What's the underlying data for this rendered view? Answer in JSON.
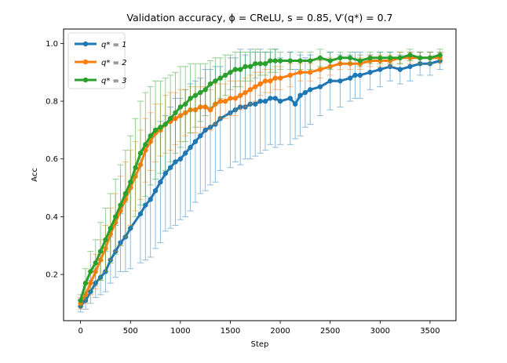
{
  "chart_data": {
    "type": "line",
    "title": "Validation accuracy, ϕ = CReLU, s = 0.85, V′(q*) = 0.7",
    "xlabel": "Step",
    "ylabel": "Acc",
    "xlim": [
      -170,
      3760
    ],
    "ylim": [
      0.04,
      1.05
    ],
    "xticks": [
      0,
      500,
      1000,
      1500,
      2000,
      2500,
      3000,
      3500
    ],
    "yticks": [
      0.2,
      0.4,
      0.6,
      0.8,
      1.0
    ],
    "xtick_labels": [
      "0",
      "500",
      "1000",
      "1500",
      "2000",
      "2500",
      "3000",
      "3500"
    ],
    "ytick_labels": [
      "0.2",
      "0.4",
      "0.6",
      "0.8",
      "1.0"
    ],
    "legend_position": "top-left",
    "series": [
      {
        "name": "q* = 1",
        "legend_label": "q* = 1",
        "color": "#1f77b4",
        "x": [
          0,
          50,
          100,
          150,
          200,
          250,
          300,
          350,
          400,
          450,
          500,
          600,
          650,
          700,
          750,
          800,
          850,
          900,
          950,
          1000,
          1050,
          1100,
          1150,
          1200,
          1250,
          1300,
          1350,
          1400,
          1500,
          1550,
          1600,
          1650,
          1700,
          1750,
          1800,
          1850,
          1900,
          1950,
          2000,
          2100,
          2150,
          2200,
          2250,
          2300,
          2400,
          2500,
          2600,
          2700,
          2750,
          2800,
          2900,
          3000,
          3100,
          3200,
          3300,
          3400,
          3500,
          3600
        ],
        "y": [
          0.09,
          0.11,
          0.14,
          0.17,
          0.19,
          0.21,
          0.25,
          0.28,
          0.31,
          0.33,
          0.36,
          0.41,
          0.44,
          0.46,
          0.49,
          0.52,
          0.55,
          0.57,
          0.59,
          0.6,
          0.62,
          0.64,
          0.66,
          0.68,
          0.7,
          0.71,
          0.72,
          0.74,
          0.76,
          0.77,
          0.78,
          0.78,
          0.79,
          0.79,
          0.8,
          0.8,
          0.81,
          0.81,
          0.8,
          0.81,
          0.79,
          0.82,
          0.83,
          0.84,
          0.85,
          0.87,
          0.87,
          0.88,
          0.89,
          0.89,
          0.9,
          0.91,
          0.92,
          0.91,
          0.92,
          0.93,
          0.93,
          0.94
        ],
        "err": [
          0.02,
          0.03,
          0.04,
          0.05,
          0.06,
          0.07,
          0.08,
          0.09,
          0.1,
          0.12,
          0.14,
          0.17,
          0.19,
          0.2,
          0.2,
          0.21,
          0.2,
          0.21,
          0.22,
          0.21,
          0.22,
          0.22,
          0.21,
          0.2,
          0.21,
          0.2,
          0.2,
          0.18,
          0.19,
          0.18,
          0.2,
          0.18,
          0.19,
          0.18,
          0.18,
          0.17,
          0.16,
          0.17,
          0.15,
          0.16,
          0.12,
          0.14,
          0.12,
          0.12,
          0.1,
          0.1,
          0.09,
          0.08,
          0.08,
          0.08,
          0.06,
          0.06,
          0.05,
          0.05,
          0.05,
          0.04,
          0.04,
          0.03
        ]
      },
      {
        "name": "q* = 2",
        "legend_label": "q* = 2",
        "color": "#ff7f0e",
        "x": [
          0,
          50,
          100,
          150,
          200,
          250,
          300,
          350,
          400,
          450,
          500,
          550,
          600,
          650,
          700,
          750,
          800,
          850,
          900,
          950,
          1000,
          1050,
          1100,
          1150,
          1200,
          1250,
          1300,
          1350,
          1400,
          1450,
          1500,
          1550,
          1600,
          1650,
          1700,
          1750,
          1800,
          1850,
          1900,
          1950,
          2000,
          2100,
          2200,
          2300,
          2400,
          2500,
          2600,
          2700,
          2800,
          2900,
          3000,
          3100,
          3200,
          3300,
          3400,
          3500,
          3600
        ],
        "y": [
          0.1,
          0.13,
          0.17,
          0.21,
          0.25,
          0.29,
          0.34,
          0.38,
          0.42,
          0.46,
          0.5,
          0.54,
          0.58,
          0.63,
          0.66,
          0.69,
          0.7,
          0.72,
          0.73,
          0.74,
          0.75,
          0.76,
          0.77,
          0.77,
          0.78,
          0.78,
          0.77,
          0.79,
          0.8,
          0.8,
          0.81,
          0.81,
          0.82,
          0.83,
          0.84,
          0.85,
          0.86,
          0.87,
          0.87,
          0.88,
          0.88,
          0.89,
          0.9,
          0.9,
          0.91,
          0.92,
          0.93,
          0.93,
          0.93,
          0.94,
          0.94,
          0.94,
          0.95,
          0.95,
          0.95,
          0.95,
          0.95
        ],
        "err": [
          0.02,
          0.03,
          0.04,
          0.06,
          0.07,
          0.08,
          0.09,
          0.1,
          0.12,
          0.13,
          0.13,
          0.12,
          0.12,
          0.11,
          0.1,
          0.1,
          0.09,
          0.1,
          0.1,
          0.09,
          0.09,
          0.08,
          0.08,
          0.08,
          0.07,
          0.07,
          0.07,
          0.07,
          0.06,
          0.06,
          0.06,
          0.06,
          0.05,
          0.05,
          0.05,
          0.05,
          0.04,
          0.04,
          0.04,
          0.04,
          0.04,
          0.04,
          0.03,
          0.03,
          0.03,
          0.03,
          0.02,
          0.02,
          0.02,
          0.02,
          0.02,
          0.02,
          0.02,
          0.02,
          0.02,
          0.02,
          0.02
        ]
      },
      {
        "name": "q* = 3",
        "legend_label": "q* = 3",
        "color": "#2ca02c",
        "x": [
          0,
          50,
          100,
          150,
          200,
          250,
          300,
          350,
          400,
          450,
          500,
          550,
          600,
          650,
          700,
          750,
          800,
          850,
          900,
          950,
          1000,
          1050,
          1100,
          1150,
          1200,
          1250,
          1300,
          1350,
          1400,
          1450,
          1500,
          1550,
          1600,
          1650,
          1700,
          1750,
          1800,
          1850,
          1900,
          1950,
          2000,
          2100,
          2200,
          2300,
          2400,
          2500,
          2600,
          2700,
          2800,
          2900,
          3000,
          3100,
          3200,
          3300,
          3400,
          3500,
          3600
        ],
        "y": [
          0.11,
          0.17,
          0.21,
          0.24,
          0.28,
          0.32,
          0.36,
          0.4,
          0.44,
          0.48,
          0.52,
          0.57,
          0.62,
          0.65,
          0.68,
          0.7,
          0.71,
          0.72,
          0.74,
          0.76,
          0.78,
          0.79,
          0.81,
          0.82,
          0.83,
          0.84,
          0.86,
          0.87,
          0.88,
          0.89,
          0.9,
          0.91,
          0.91,
          0.92,
          0.92,
          0.93,
          0.93,
          0.93,
          0.94,
          0.94,
          0.94,
          0.94,
          0.94,
          0.94,
          0.95,
          0.94,
          0.95,
          0.95,
          0.94,
          0.95,
          0.95,
          0.95,
          0.95,
          0.96,
          0.95,
          0.95,
          0.96
        ],
        "err": [
          0.02,
          0.05,
          0.07,
          0.08,
          0.1,
          0.11,
          0.12,
          0.13,
          0.14,
          0.15,
          0.16,
          0.17,
          0.18,
          0.18,
          0.17,
          0.17,
          0.16,
          0.16,
          0.15,
          0.14,
          0.14,
          0.13,
          0.12,
          0.11,
          0.1,
          0.09,
          0.08,
          0.08,
          0.07,
          0.07,
          0.06,
          0.06,
          0.06,
          0.05,
          0.05,
          0.05,
          0.04,
          0.04,
          0.04,
          0.04,
          0.03,
          0.03,
          0.03,
          0.03,
          0.03,
          0.03,
          0.02,
          0.02,
          0.02,
          0.02,
          0.02,
          0.02,
          0.02,
          0.02,
          0.02,
          0.02,
          0.02
        ]
      }
    ]
  }
}
